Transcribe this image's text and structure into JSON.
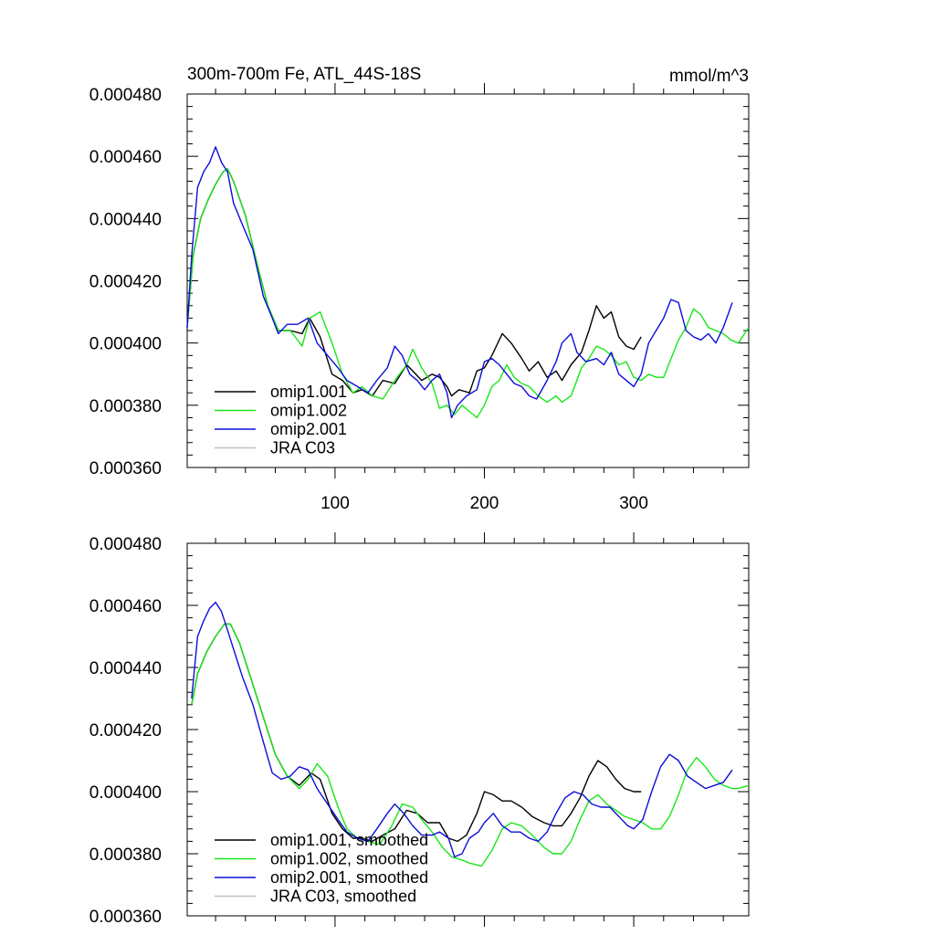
{
  "colors": {
    "omip1_001": "#000000",
    "omip1_002": "#19e619",
    "omip2_001": "#0d0dd9",
    "jra_c03": "#bfbfbf"
  },
  "chart_data": [
    {
      "type": "line",
      "title": "300m-700m Fe, ATL_44S-18S",
      "units": "mmol/m^3",
      "xlabel": "",
      "ylabel": "",
      "xlim": [
        1,
        377
      ],
      "ylim": [
        0.00036,
        0.00048
      ],
      "x_ticks": [
        "100",
        "200",
        "300"
      ],
      "y_ticks": [
        "0.000360",
        "0.000380",
        "0.000400",
        "0.000420",
        "0.000440",
        "0.000460",
        "0.000480"
      ],
      "legend_position": "bottom-left",
      "series": [
        {
          "name": "omip1.001",
          "color": "#000000",
          "x": [
            1,
            5,
            10,
            15,
            20,
            25,
            28,
            32,
            40,
            48,
            55,
            62,
            70,
            78,
            83,
            90,
            98,
            105,
            112,
            118,
            125,
            132,
            140,
            148,
            152,
            158,
            165,
            170,
            175,
            178,
            183,
            190,
            195,
            200,
            205,
            212,
            218,
            225,
            230,
            236,
            242,
            248,
            252,
            258,
            265,
            270,
            275,
            280,
            285,
            290,
            295,
            300,
            305
          ],
          "y": [
            0.000405,
            0.000428,
            0.00044,
            0.000446,
            0.000451,
            0.000455,
            0.000456,
            0.000452,
            0.000441,
            0.000425,
            0.000412,
            0.000404,
            0.000404,
            0.000403,
            0.000408,
            0.000402,
            0.00039,
            0.000388,
            0.000384,
            0.000385,
            0.000383,
            0.000388,
            0.000387,
            0.000393,
            0.000391,
            0.000388,
            0.00039,
            0.000389,
            0.000386,
            0.000383,
            0.000385,
            0.000384,
            0.000391,
            0.000392,
            0.000396,
            0.000403,
            0.0004,
            0.000395,
            0.000391,
            0.000394,
            0.000389,
            0.000391,
            0.000388,
            0.000393,
            0.000397,
            0.000404,
            0.000412,
            0.000408,
            0.00041,
            0.000402,
            0.000399,
            0.000398,
            0.000402
          ]
        },
        {
          "name": "omip1.002",
          "color": "#19e619",
          "x": [
            1,
            5,
            10,
            15,
            20,
            25,
            28,
            32,
            40,
            48,
            55,
            62,
            70,
            78,
            83,
            90,
            98,
            105,
            112,
            118,
            125,
            132,
            140,
            148,
            152,
            158,
            165,
            170,
            175,
            180,
            185,
            190,
            195,
            200,
            205,
            210,
            215,
            220,
            225,
            230,
            236,
            242,
            248,
            252,
            258,
            265,
            270,
            275,
            280,
            285,
            290,
            295,
            300,
            305,
            310,
            315,
            320,
            325,
            330,
            335,
            340,
            345,
            350,
            355,
            360,
            365,
            370,
            377
          ],
          "y": [
            0.000405,
            0.000428,
            0.00044,
            0.000446,
            0.000451,
            0.000455,
            0.000456,
            0.000452,
            0.000441,
            0.000425,
            0.000412,
            0.000404,
            0.000404,
            0.000399,
            0.000408,
            0.00041,
            0.0004,
            0.00039,
            0.000384,
            0.000386,
            0.000383,
            0.000382,
            0.000388,
            0.000393,
            0.000398,
            0.000392,
            0.000387,
            0.000379,
            0.00038,
            0.000377,
            0.00038,
            0.000378,
            0.000376,
            0.00038,
            0.000386,
            0.000388,
            0.000393,
            0.000389,
            0.000387,
            0.000386,
            0.000383,
            0.000381,
            0.000383,
            0.000381,
            0.000383,
            0.000392,
            0.000395,
            0.000399,
            0.000398,
            0.000396,
            0.000393,
            0.000394,
            0.000389,
            0.000388,
            0.00039,
            0.000389,
            0.000389,
            0.000395,
            0.000401,
            0.000405,
            0.000411,
            0.000409,
            0.000405,
            0.000404,
            0.000403,
            0.000401,
            0.0004,
            0.000405
          ]
        },
        {
          "name": "omip2.001",
          "color": "#0d0dd9",
          "x": [
            1,
            4,
            8,
            12,
            16,
            20,
            24,
            28,
            32,
            38,
            45,
            52,
            58,
            62,
            68,
            75,
            82,
            88,
            95,
            102,
            108,
            115,
            122,
            128,
            135,
            140,
            145,
            150,
            155,
            160,
            165,
            170,
            175,
            178,
            182,
            188,
            195,
            200,
            205,
            210,
            215,
            220,
            225,
            230,
            235,
            242,
            248,
            252,
            258,
            262,
            268,
            275,
            280,
            285,
            290,
            295,
            300,
            305,
            310,
            315,
            320,
            325,
            330,
            335,
            340,
            345,
            350,
            355,
            360,
            366
          ],
          "y": [
            0.000405,
            0.000428,
            0.00045,
            0.000455,
            0.000458,
            0.000463,
            0.000458,
            0.000455,
            0.000445,
            0.000438,
            0.00043,
            0.000415,
            0.000408,
            0.000403,
            0.000406,
            0.000406,
            0.000408,
            0.0004,
            0.000396,
            0.000392,
            0.000388,
            0.000386,
            0.000384,
            0.000388,
            0.000392,
            0.000399,
            0.000396,
            0.00039,
            0.000388,
            0.000385,
            0.000388,
            0.00039,
            0.000384,
            0.000376,
            0.00038,
            0.000383,
            0.000385,
            0.000394,
            0.000395,
            0.000393,
            0.00039,
            0.000387,
            0.000386,
            0.000383,
            0.000382,
            0.000388,
            0.000394,
            0.0004,
            0.000403,
            0.000397,
            0.000394,
            0.000395,
            0.000393,
            0.000397,
            0.00039,
            0.000388,
            0.000386,
            0.00039,
            0.0004,
            0.000404,
            0.000408,
            0.000414,
            0.000413,
            0.000404,
            0.000402,
            0.000401,
            0.000403,
            0.0004,
            0.000405,
            0.000413
          ]
        },
        {
          "name": "JRA C03",
          "color": "#bfbfbf",
          "x": [],
          "y": []
        }
      ]
    },
    {
      "type": "line",
      "title": "",
      "xlabel": "",
      "ylabel": "",
      "xlim": [
        1,
        377
      ],
      "ylim": [
        0.00036,
        0.00048
      ],
      "x_ticks": [],
      "y_ticks": [
        "0.000360",
        "0.000380",
        "0.000400",
        "0.000420",
        "0.000440",
        "0.000460",
        "0.000480"
      ],
      "legend_position": "bottom-left",
      "series": [
        {
          "name": "omip1.001, smoothed",
          "color": "#000000",
          "x": [
            4,
            8,
            14,
            20,
            26,
            30,
            36,
            44,
            52,
            60,
            68,
            76,
            84,
            90,
            98,
            105,
            112,
            118,
            125,
            132,
            140,
            148,
            155,
            162,
            170,
            176,
            182,
            188,
            195,
            200,
            206,
            212,
            218,
            225,
            232,
            240,
            246,
            252,
            258,
            264,
            270,
            276,
            282,
            288,
            294,
            300,
            305
          ],
          "y": [
            0.000428,
            0.000438,
            0.000445,
            0.00045,
            0.000454,
            0.000454,
            0.000448,
            0.000436,
            0.000424,
            0.000412,
            0.000405,
            0.000402,
            0.000406,
            0.000404,
            0.000393,
            0.000388,
            0.000385,
            0.000385,
            0.000384,
            0.000386,
            0.000388,
            0.000394,
            0.000393,
            0.00039,
            0.00039,
            0.000385,
            0.000384,
            0.000386,
            0.000393,
            0.0004,
            0.000399,
            0.000397,
            0.000397,
            0.000395,
            0.000392,
            0.00039,
            0.000389,
            0.000389,
            0.000393,
            0.000398,
            0.000405,
            0.00041,
            0.000408,
            0.000404,
            0.000401,
            0.0004,
            0.0004
          ]
        },
        {
          "name": "omip1.002, smoothed",
          "color": "#19e619",
          "x": [
            4,
            8,
            14,
            20,
            26,
            30,
            36,
            44,
            52,
            60,
            68,
            76,
            82,
            88,
            95,
            102,
            108,
            115,
            122,
            130,
            138,
            145,
            152,
            158,
            165,
            172,
            178,
            185,
            190,
            198,
            205,
            212,
            218,
            225,
            232,
            240,
            246,
            252,
            258,
            264,
            270,
            276,
            282,
            288,
            294,
            300,
            306,
            312,
            318,
            324,
            330,
            336,
            342,
            348,
            354,
            360,
            366,
            370,
            377
          ],
          "y": [
            0.000428,
            0.000438,
            0.000445,
            0.00045,
            0.000454,
            0.000454,
            0.000448,
            0.000436,
            0.000424,
            0.000412,
            0.000405,
            0.000401,
            0.000404,
            0.000409,
            0.000405,
            0.000395,
            0.000388,
            0.000385,
            0.000384,
            0.000383,
            0.000389,
            0.000396,
            0.000395,
            0.000391,
            0.000387,
            0.000382,
            0.000379,
            0.000378,
            0.000377,
            0.000376,
            0.000381,
            0.000388,
            0.00039,
            0.000389,
            0.000386,
            0.000382,
            0.00038,
            0.00038,
            0.000384,
            0.000391,
            0.000397,
            0.000399,
            0.000396,
            0.000394,
            0.000392,
            0.000391,
            0.00039,
            0.000388,
            0.000388,
            0.000392,
            0.000399,
            0.000407,
            0.000411,
            0.000408,
            0.000404,
            0.000402,
            0.000401,
            0.000401,
            0.000402
          ]
        },
        {
          "name": "omip2.001, smoothed",
          "color": "#0d0dd9",
          "x": [
            4,
            8,
            12,
            16,
            20,
            24,
            28,
            32,
            38,
            45,
            52,
            58,
            64,
            70,
            76,
            82,
            88,
            95,
            102,
            108,
            115,
            122,
            128,
            135,
            140,
            146,
            152,
            158,
            165,
            170,
            176,
            180,
            185,
            190,
            196,
            200,
            206,
            212,
            218,
            224,
            230,
            236,
            242,
            248,
            254,
            260,
            266,
            272,
            278,
            284,
            290,
            296,
            300,
            306,
            312,
            318,
            324,
            330,
            336,
            342,
            348,
            354,
            360,
            366
          ],
          "y": [
            0.00043,
            0.00045,
            0.000455,
            0.000459,
            0.000461,
            0.000458,
            0.000452,
            0.000446,
            0.000437,
            0.000428,
            0.000416,
            0.000406,
            0.000404,
            0.000405,
            0.000408,
            0.000407,
            0.000401,
            0.000396,
            0.000391,
            0.000387,
            0.000385,
            0.000384,
            0.000388,
            0.000393,
            0.000396,
            0.000393,
            0.000389,
            0.000386,
            0.000386,
            0.000387,
            0.000385,
            0.000379,
            0.00038,
            0.000385,
            0.000387,
            0.00039,
            0.000393,
            0.000389,
            0.000387,
            0.000387,
            0.000385,
            0.000384,
            0.000387,
            0.000393,
            0.000398,
            0.0004,
            0.000399,
            0.000396,
            0.000395,
            0.000395,
            0.000392,
            0.000389,
            0.000388,
            0.000391,
            0.0004,
            0.000408,
            0.000412,
            0.00041,
            0.000405,
            0.000403,
            0.000401,
            0.000402,
            0.000403,
            0.000407
          ]
        },
        {
          "name": "JRA C03, smoothed",
          "color": "#bfbfbf",
          "x": [],
          "y": []
        }
      ]
    }
  ]
}
